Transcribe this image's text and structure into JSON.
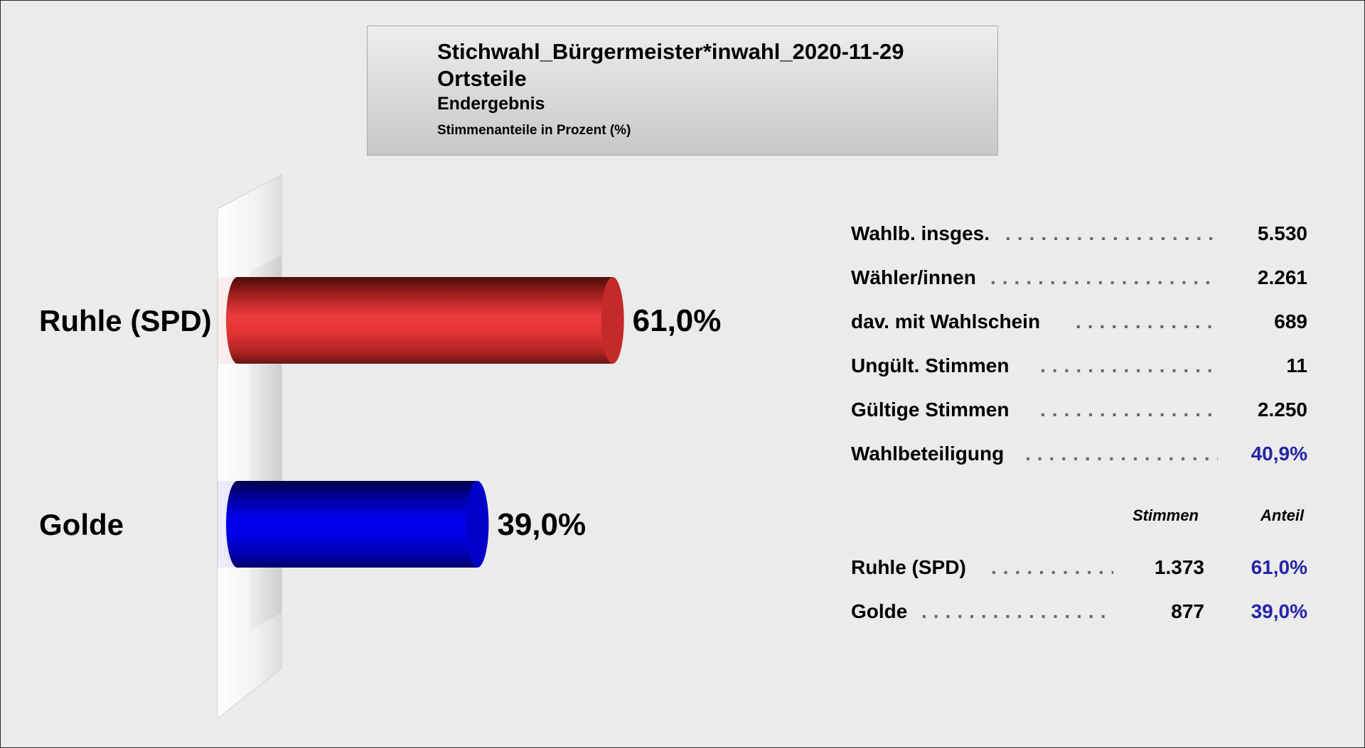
{
  "header": {
    "title": "Stichwahl_Bürgermeister*inwahl_2020-11-29",
    "area": "Ortsteile",
    "status": "Endergebnis",
    "unit_note": "Stimmenanteile in Prozent (%)"
  },
  "chart_data": {
    "type": "bar",
    "orientation": "horizontal",
    "categories": [
      "Ruhle (SPD)",
      "Golde"
    ],
    "values": [
      61.0,
      39.0
    ],
    "value_labels": [
      "61,0%",
      "39,0%"
    ],
    "colors": [
      "#e03030",
      "#0000e6"
    ],
    "xlim": [
      0,
      100
    ]
  },
  "stats": [
    {
      "label": "Wahlb. insges.",
      "value": "5.530"
    },
    {
      "label": " dav. mit Wahlschein",
      "value": "689",
      "label_on_row": 2
    },
    {
      "label": "Wähler/innen",
      "value": "2.261"
    },
    {
      "label": "Ungült. Stimmen",
      "value": "11"
    },
    {
      "label": "Gültige Stimmen",
      "value": "2.250"
    },
    {
      "label": "Wahlbeteiligung",
      "value": "40,9%"
    }
  ],
  "results_header": {
    "votes": "Stimmen",
    "share": "Anteil"
  },
  "results": [
    {
      "name": "Ruhle (SPD)",
      "votes": "1.373",
      "share": "61,0%"
    },
    {
      "name": "Golde",
      "votes": "877",
      "share": "39,0%"
    }
  ]
}
